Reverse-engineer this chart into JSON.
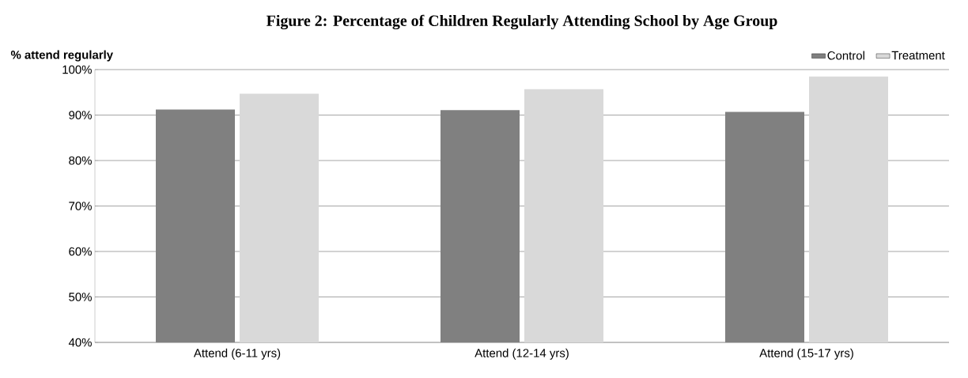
{
  "chart_data": {
    "type": "bar",
    "title": "Figure 2: Percentage of Children Regularly Attending School by Age Group",
    "ylabel": "% attend regularly",
    "categories": [
      "Attend (6-11 yrs)",
      "Attend (12-14 yrs)",
      "Attend (15-17 yrs)"
    ],
    "series": [
      {
        "name": "Control",
        "color": "#808080",
        "values": [
          91.2,
          91.1,
          90.7
        ]
      },
      {
        "name": "Treatment",
        "color": "#d9d9d9",
        "values": [
          94.7,
          95.7,
          98.5
        ]
      }
    ],
    "ylim": [
      40,
      100
    ],
    "yticks": [
      {
        "value": 40,
        "label": "40%"
      },
      {
        "value": 50,
        "label": "50%"
      },
      {
        "value": 60,
        "label": "60%"
      },
      {
        "value": 70,
        "label": "70%"
      },
      {
        "value": 80,
        "label": "80%"
      },
      {
        "value": 90,
        "label": "90%"
      },
      {
        "value": 100,
        "label": "100%"
      }
    ],
    "grid": "y",
    "legend": "top right"
  }
}
